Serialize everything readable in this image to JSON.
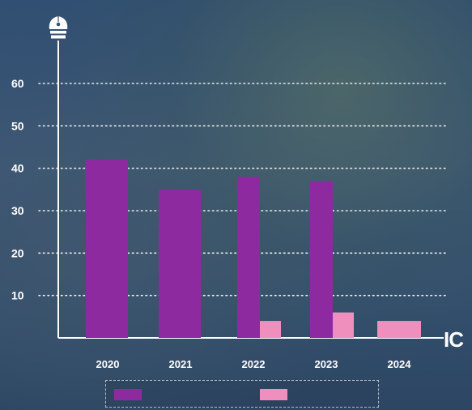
{
  "colors": {
    "series_primary": "#8e2aa0",
    "series_secondary": "#ef8fbd",
    "axis": "#ffffff",
    "grid": "#ffffff"
  },
  "icons": {
    "axis_top": "pen-nib-icon"
  },
  "logo_text": "IC",
  "legend": {
    "items": [
      {
        "label": ""
      },
      {
        "label": ""
      }
    ]
  },
  "chart_data": {
    "type": "bar",
    "categories": [
      "2020",
      "2021",
      "2022",
      "2023",
      "2024"
    ],
    "series": [
      {
        "values": [
          42,
          35,
          38,
          37,
          null
        ],
        "color": "#8e2aa0"
      },
      {
        "values": [
          null,
          null,
          4,
          6,
          4
        ],
        "color": "#ef8fbd"
      }
    ],
    "yticks": [
      10,
      20,
      30,
      40,
      50,
      60
    ],
    "ylim": [
      0,
      66
    ],
    "grid": true,
    "grid_style": "dotted",
    "legend_position": "bottom",
    "title": "",
    "xlabel": "",
    "ylabel": ""
  }
}
